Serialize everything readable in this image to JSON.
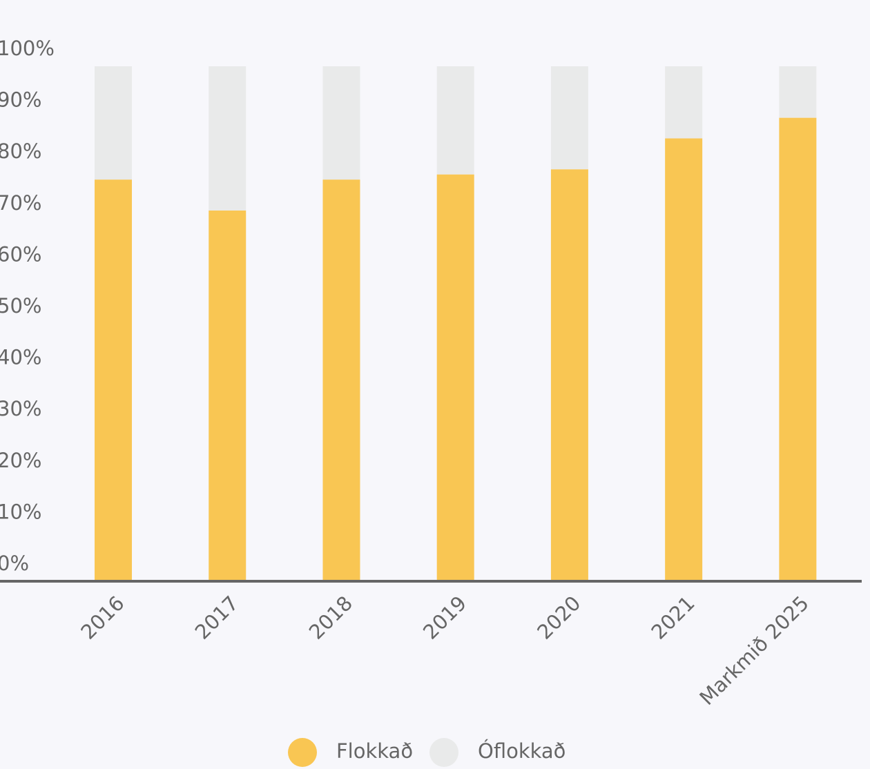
{
  "chart_data": {
    "type": "stacked_bar",
    "categories": [
      "2016",
      "2017",
      "2018",
      "2019",
      "2020",
      "2021",
      "Markmið 2025"
    ],
    "series": [
      {
        "name": "Flokkað",
        "color": "#f9c653",
        "values": [
          78,
          72,
          78,
          79,
          80,
          86,
          90
        ]
      },
      {
        "name": "Óflokkað",
        "color": "#e9eaea",
        "values": [
          22,
          28,
          22,
          21,
          20,
          14,
          10
        ]
      }
    ],
    "ylim": [
      0,
      100
    ],
    "yticks": [
      {
        "value": 0,
        "label": "0%"
      },
      {
        "value": 10,
        "label": "10%"
      },
      {
        "value": 20,
        "label": "20%"
      },
      {
        "value": 30,
        "label": "30%"
      },
      {
        "value": 40,
        "label": "40%"
      },
      {
        "value": 50,
        "label": "50%"
      },
      {
        "value": 60,
        "label": "60%"
      },
      {
        "value": 70,
        "label": "70%"
      },
      {
        "value": 80,
        "label": "80%"
      },
      {
        "value": 90,
        "label": "90%"
      },
      {
        "value": 100,
        "label": "100%"
      }
    ],
    "grid": false,
    "legend": "bottom"
  }
}
